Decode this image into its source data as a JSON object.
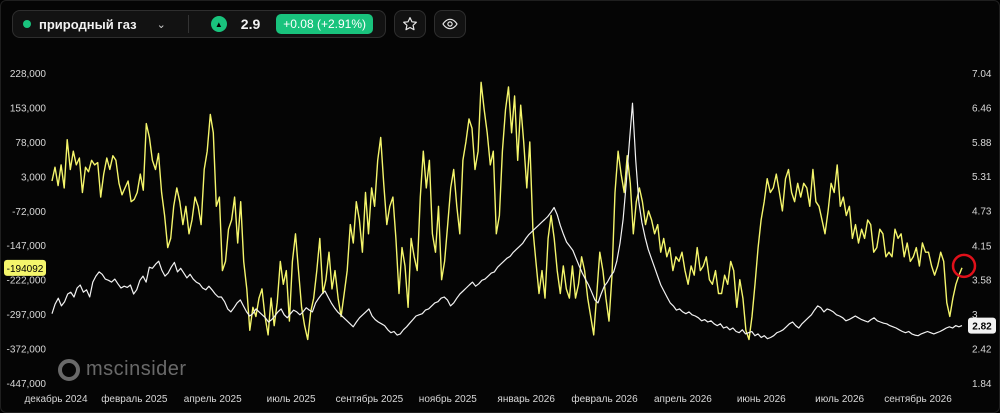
{
  "toolbar": {
    "instrument": "природный газ",
    "price": "2.9",
    "change": "+0.08 (+2.91%)",
    "icons": [
      "chevron-down-icon",
      "triangle-up-icon",
      "star-icon",
      "eye-icon"
    ]
  },
  "watermark": "mscinsider",
  "colors": {
    "background": "#000000",
    "position_line": "#f4f56b",
    "price_line": "#f2f2f2",
    "accent_green": "#19c37d",
    "marker": "#e0101a"
  },
  "chart_data": {
    "type": "line",
    "title": "",
    "xlabel": "",
    "ylabel": "",
    "x_tick_labels": [
      "декабрь 2024",
      "февраль 2025",
      "апрель 2025",
      "июль 2025",
      "сентябрь 2025",
      "ноябрь 2025",
      "январь 2026",
      "февраль 2026",
      "апрель 2026",
      "июнь 2026",
      "июль 2026",
      "сентябрь 2026"
    ],
    "y_left_ticks": [
      "228,000",
      "153,000",
      "78,000",
      "3,000",
      "-72,000",
      "-147,000",
      "-222,000",
      "-297,000",
      "-372,000",
      "-447,000"
    ],
    "y_left_range": [
      -447000,
      228000
    ],
    "y_right_ticks": [
      "7.04",
      "6.46",
      "5.88",
      "5.31",
      "4.73",
      "4.15",
      "3.58",
      "3",
      "2.42",
      "1.84"
    ],
    "y_right_range": [
      1.84,
      7.04
    ],
    "last_left_label": "-194092",
    "last_right_label": "2.82",
    "grid": false,
    "legend": "none",
    "series": [
      {
        "axis": "left",
        "values": [
          -5000,
          25000,
          -15000,
          30000,
          -20000,
          85000,
          20000,
          60000,
          30000,
          45000,
          -30000,
          25000,
          15000,
          40000,
          30000,
          35000,
          -40000,
          10000,
          45000,
          20000,
          50000,
          40000,
          -10000,
          -35000,
          -20000,
          -5000,
          -50000,
          -45000,
          -30000,
          10000,
          -25000,
          120000,
          90000,
          40000,
          20000,
          55000,
          -30000,
          -80000,
          -150000,
          -130000,
          -60000,
          -20000,
          -50000,
          -100000,
          -60000,
          -120000,
          -90000,
          -40000,
          -60000,
          -100000,
          20000,
          60000,
          140000,
          100000,
          -60000,
          -40000,
          -200000,
          -180000,
          -110000,
          -90000,
          -40000,
          -140000,
          -50000,
          -180000,
          -240000,
          -330000,
          -280000,
          -300000,
          -260000,
          -240000,
          -300000,
          -340000,
          -260000,
          -320000,
          -270000,
          -180000,
          -230000,
          -200000,
          -310000,
          -180000,
          -120000,
          -200000,
          -280000,
          -320000,
          -350000,
          -290000,
          -260000,
          -200000,
          -130000,
          -250000,
          -220000,
          -160000,
          -240000,
          -200000,
          -260000,
          -300000,
          -250000,
          -200000,
          -100000,
          -140000,
          -50000,
          -90000,
          -160000,
          -30000,
          -120000,
          -20000,
          -60000,
          40000,
          90000,
          -10000,
          -100000,
          -60000,
          -40000,
          -130000,
          -250000,
          -150000,
          -190000,
          -280000,
          -130000,
          -170000,
          -200000,
          -40000,
          60000,
          -20000,
          40000,
          -120000,
          -160000,
          -60000,
          -220000,
          -180000,
          -100000,
          -20000,
          20000,
          -60000,
          -120000,
          40000,
          80000,
          130000,
          110000,
          20000,
          60000,
          210000,
          150000,
          100000,
          30000,
          60000,
          -120000,
          -80000,
          60000,
          150000,
          200000,
          100000,
          180000,
          40000,
          160000,
          80000,
          -20000,
          80000,
          -110000,
          -180000,
          -250000,
          -200000,
          -260000,
          -130000,
          -80000,
          -130000,
          -200000,
          -250000,
          -190000,
          -240000,
          -260000,
          -190000,
          -260000,
          -230000,
          -170000,
          -200000,
          -260000,
          -300000,
          -340000,
          -250000,
          -160000,
          -200000,
          -260000,
          -310000,
          -210000,
          -30000,
          60000,
          10000,
          -30000,
          50000,
          -10000,
          -120000,
          -50000,
          -20000,
          -50000,
          -100000,
          -70000,
          -90000,
          -120000,
          -100000,
          -160000,
          -130000,
          -170000,
          -150000,
          -200000,
          -170000,
          -180000,
          -160000,
          -200000,
          -230000,
          -190000,
          -210000,
          -150000,
          -200000,
          -190000,
          -170000,
          -220000,
          -230000,
          -200000,
          -250000,
          -250000,
          -210000,
          -230000,
          -180000,
          -200000,
          -280000,
          -220000,
          -260000,
          -330000,
          -350000,
          -300000,
          -230000,
          -150000,
          -90000,
          -50000,
          0,
          -30000,
          -20000,
          10000,
          -30000,
          -70000,
          0,
          20000,
          -30000,
          -50000,
          -10000,
          -40000,
          -10000,
          -20000,
          -60000,
          20000,
          -50000,
          -60000,
          -90000,
          -120000,
          -70000,
          -10000,
          -30000,
          30000,
          -60000,
          -40000,
          -80000,
          -60000,
          -130000,
          -100000,
          -140000,
          -110000,
          -130000,
          -90000,
          -100000,
          -160000,
          -150000,
          -110000,
          -120000,
          -170000,
          -160000,
          -170000,
          -110000,
          -130000,
          -120000,
          -170000,
          -140000,
          -180000,
          -170000,
          -150000,
          -190000,
          -140000,
          -160000,
          -160000,
          -190000,
          -210000,
          -190000,
          -160000,
          -180000,
          -270000,
          -300000,
          -260000,
          -230000,
          -210000,
          -194092
        ]
      },
      {
        "axis": "right",
        "values": [
          3.02,
          3.18,
          3.28,
          3.15,
          3.22,
          3.35,
          3.38,
          3.3,
          3.45,
          3.5,
          3.38,
          3.42,
          3.3,
          3.55,
          3.65,
          3.72,
          3.68,
          3.6,
          3.58,
          3.55,
          3.6,
          3.52,
          3.45,
          3.48,
          3.46,
          3.5,
          3.35,
          3.42,
          3.58,
          3.65,
          3.55,
          3.8,
          3.78,
          3.85,
          3.9,
          3.75,
          3.65,
          3.7,
          3.8,
          3.88,
          3.72,
          3.78,
          3.7,
          3.62,
          3.68,
          3.6,
          3.55,
          3.52,
          3.45,
          3.42,
          3.48,
          3.42,
          3.35,
          3.3,
          3.3,
          3.22,
          3.1,
          3.05,
          3.12,
          3.2,
          3.25,
          3.15,
          3.05,
          2.98,
          3.02,
          3.1,
          3.05,
          3.0,
          2.95,
          2.88,
          2.92,
          2.98,
          3.05,
          3.1,
          3.0,
          2.95,
          3.02,
          3.08,
          3.05,
          3.0,
          3.05,
          3.12,
          3.08,
          3.05,
          3.2,
          3.28,
          3.35,
          3.4,
          3.3,
          3.2,
          3.12,
          3.05,
          3.0,
          2.95,
          2.9,
          2.85,
          2.8,
          2.88,
          2.95,
          3.0,
          3.05,
          3.1,
          2.98,
          2.92,
          2.88,
          2.85,
          2.82,
          2.75,
          2.7,
          2.72,
          2.66,
          2.68,
          2.75,
          2.8,
          2.86,
          2.92,
          2.98,
          3.0,
          3.02,
          3.08,
          3.1,
          3.15,
          3.2,
          3.22,
          3.28,
          3.3,
          3.25,
          3.15,
          3.2,
          3.28,
          3.35,
          3.4,
          3.45,
          3.5,
          3.55,
          3.48,
          3.52,
          3.58,
          3.6,
          3.65,
          3.7,
          3.72,
          3.8,
          3.85,
          3.9,
          3.95,
          3.98,
          4.05,
          4.1,
          4.15,
          4.2,
          4.28,
          4.35,
          4.4,
          4.45,
          4.5,
          4.55,
          4.6,
          4.65,
          4.72,
          4.8,
          4.68,
          4.5,
          4.35,
          4.22,
          4.15,
          4.08,
          3.95,
          3.82,
          3.7,
          3.6,
          3.5,
          3.38,
          3.25,
          3.2,
          3.35,
          3.48,
          3.55,
          3.65,
          3.72,
          3.9,
          4.2,
          4.6,
          5.2,
          5.9,
          6.55,
          5.6,
          4.9,
          4.55,
          4.3,
          4.1,
          3.95,
          3.8,
          3.65,
          3.5,
          3.4,
          3.3,
          3.2,
          3.15,
          3.08,
          3.1,
          3.05,
          3.02,
          3.05,
          3.0,
          2.98,
          2.95,
          2.9,
          2.92,
          2.88,
          2.9,
          2.85,
          2.82,
          2.85,
          2.78,
          2.8,
          2.75,
          2.78,
          2.72,
          2.7,
          2.75,
          2.68,
          2.7,
          2.72,
          2.65,
          2.68,
          2.62,
          2.65,
          2.6,
          2.62,
          2.65,
          2.7,
          2.72,
          2.75,
          2.8,
          2.85,
          2.88,
          2.82,
          2.78,
          2.85,
          2.9,
          2.95,
          3.0,
          3.08,
          3.15,
          3.12,
          3.05,
          3.1,
          3.08,
          3.05,
          3.0,
          2.98,
          2.95,
          2.9,
          2.92,
          2.95,
          2.98,
          2.95,
          2.92,
          2.9,
          2.88,
          2.92,
          2.95,
          2.9,
          2.88,
          2.86,
          2.85,
          2.82,
          2.8,
          2.78,
          2.75,
          2.72,
          2.7,
          2.72,
          2.68,
          2.66,
          2.65,
          2.68,
          2.7,
          2.72,
          2.7,
          2.68,
          2.7,
          2.72,
          2.75,
          2.78,
          2.8,
          2.78,
          2.82,
          2.8,
          2.82
        ]
      }
    ]
  }
}
